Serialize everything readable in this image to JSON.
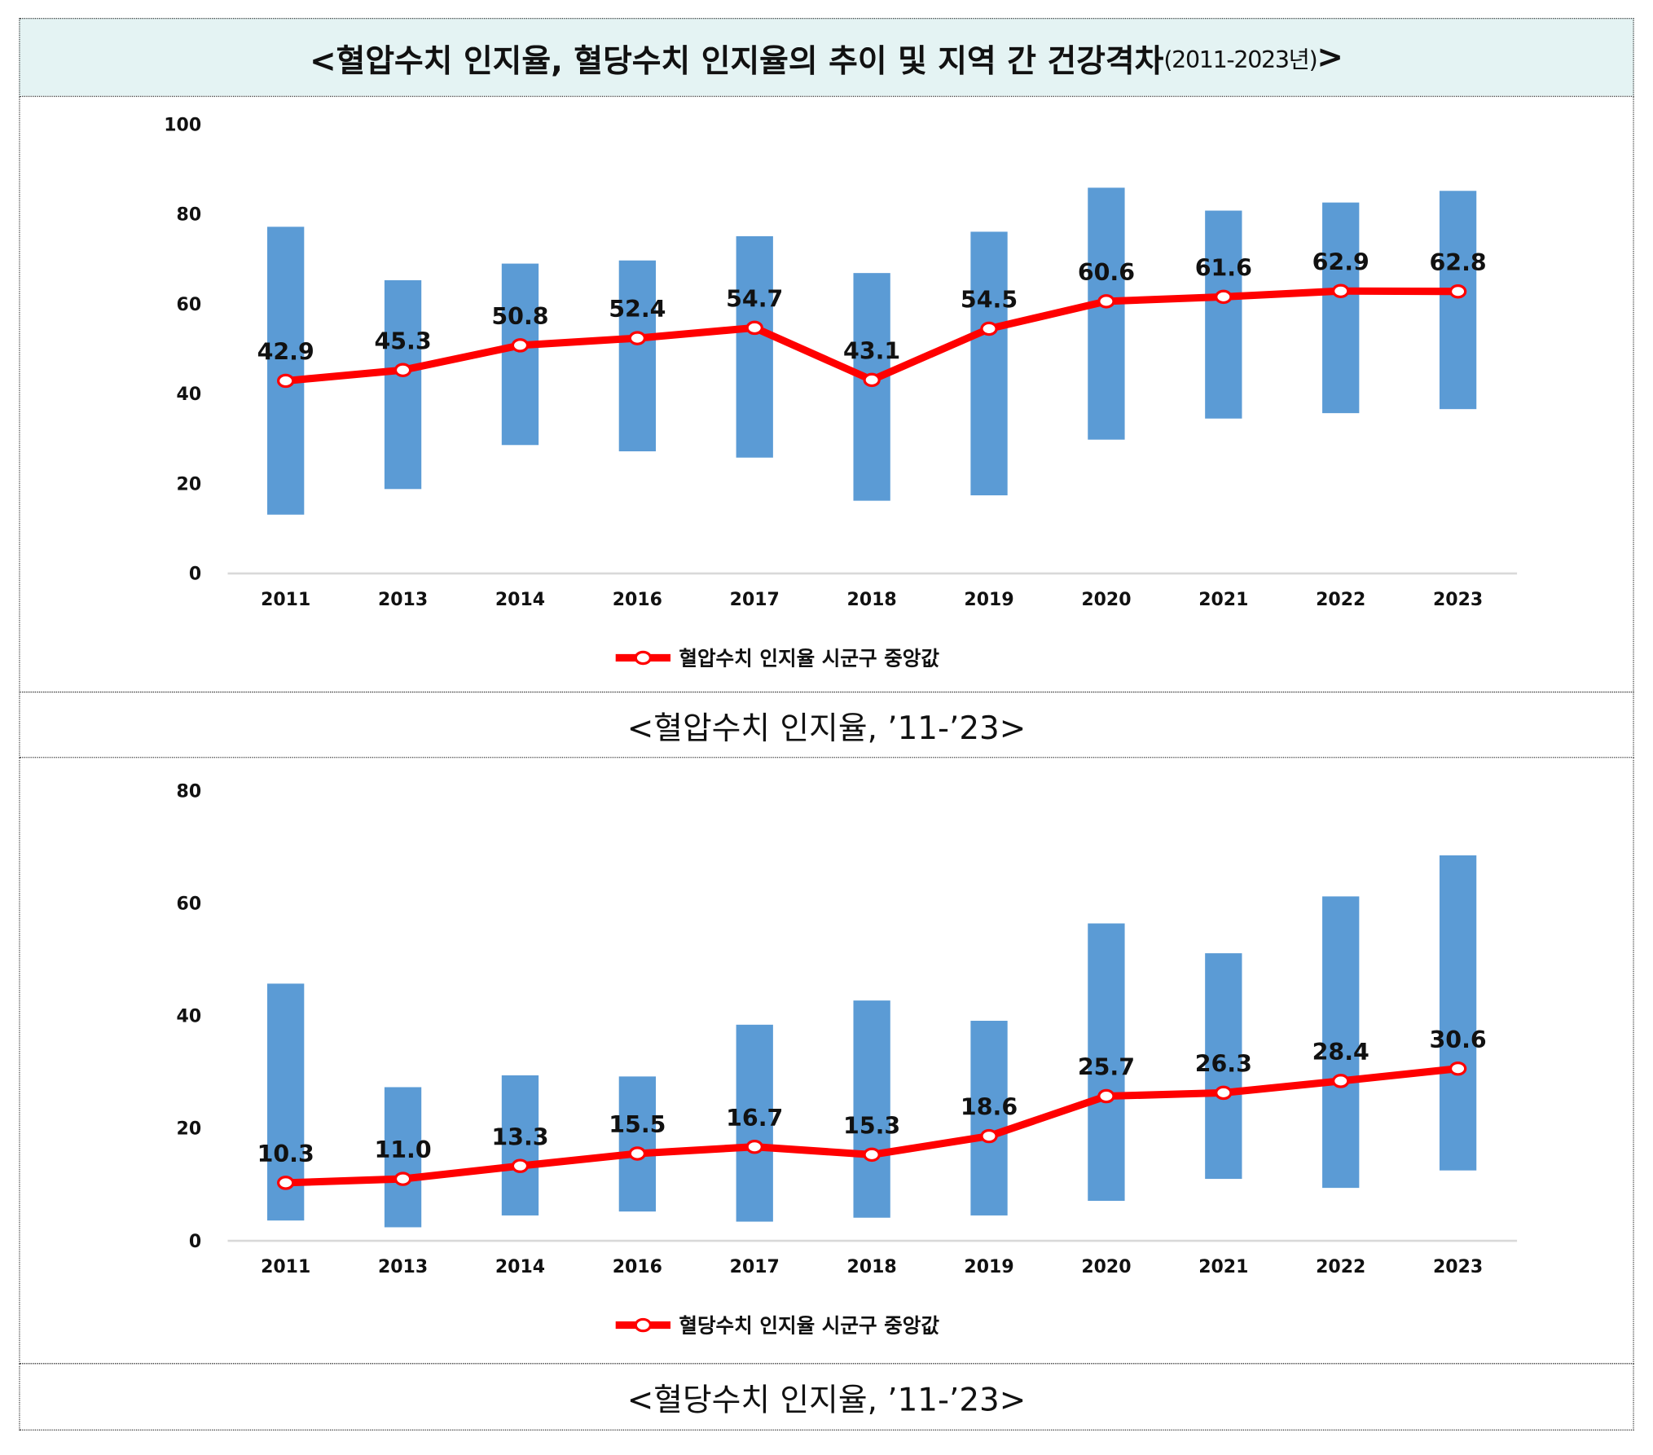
{
  "title": {
    "main": "<혈압수치 인지율, 혈당수치 인지율의 추이 및 지역 간 건강격차",
    "sub": "(2011-2023년)",
    "close": ">"
  },
  "colors": {
    "bar": "#5b9bd5",
    "line": "#ff0000",
    "marker_fill": "#ffffff"
  },
  "chart_data": [
    {
      "type": "bar+line",
      "caption": "<혈압수치 인지율, ’11-’23>",
      "categories": [
        "2011",
        "2013",
        "2014",
        "2016",
        "2017",
        "2018",
        "2019",
        "2020",
        "2021",
        "2022",
        "2023"
      ],
      "ylim": [
        0,
        100
      ],
      "yticks": [
        "0",
        "20",
        "40",
        "60",
        "80",
        "100"
      ],
      "range_bars": {
        "low": [
          13.1,
          18.8,
          28.6,
          27.2,
          25.8,
          16.2,
          17.4,
          29.8,
          34.5,
          35.7,
          36.6
        ],
        "high": [
          77.2,
          65.3,
          69.0,
          69.7,
          75.1,
          66.9,
          76.1,
          85.9,
          80.8,
          82.6,
          85.2
        ]
      },
      "series": [
        {
          "name": "혈압수치 인지율 시군구 중앙값",
          "values": [
            42.9,
            45.3,
            50.8,
            52.4,
            54.7,
            43.1,
            54.5,
            60.6,
            61.6,
            62.9,
            62.8
          ],
          "labels": [
            "42.9",
            "45.3",
            "50.8",
            "52.4",
            "54.7",
            "43.1",
            "54.5",
            "60.6",
            "61.6",
            "62.9",
            "62.8"
          ]
        }
      ],
      "legend": "bottom"
    },
    {
      "type": "bar+line",
      "caption": "<혈당수치 인지율, ’11-’23>",
      "categories": [
        "2011",
        "2013",
        "2014",
        "2016",
        "2017",
        "2018",
        "2019",
        "2020",
        "2021",
        "2022",
        "2023"
      ],
      "ylim": [
        0,
        80
      ],
      "yticks": [
        "0",
        "20",
        "40",
        "60",
        "80"
      ],
      "range_bars": {
        "low": [
          3.6,
          2.4,
          4.5,
          5.2,
          3.4,
          4.1,
          4.5,
          7.1,
          11.0,
          9.4,
          12.5
        ],
        "high": [
          45.7,
          27.3,
          29.4,
          29.2,
          38.4,
          42.7,
          39.1,
          56.4,
          51.1,
          61.2,
          68.5
        ]
      },
      "series": [
        {
          "name": "혈당수치 인지율 시군구 중앙값",
          "values": [
            10.3,
            11.0,
            13.3,
            15.5,
            16.7,
            15.3,
            18.6,
            25.7,
            26.3,
            28.4,
            30.6
          ],
          "labels": [
            "10.3",
            "11.0",
            "13.3",
            "15.5",
            "16.7",
            "15.3",
            "18.6",
            "25.7",
            "26.3",
            "28.4",
            "30.6"
          ]
        }
      ],
      "legend": "bottom"
    }
  ]
}
